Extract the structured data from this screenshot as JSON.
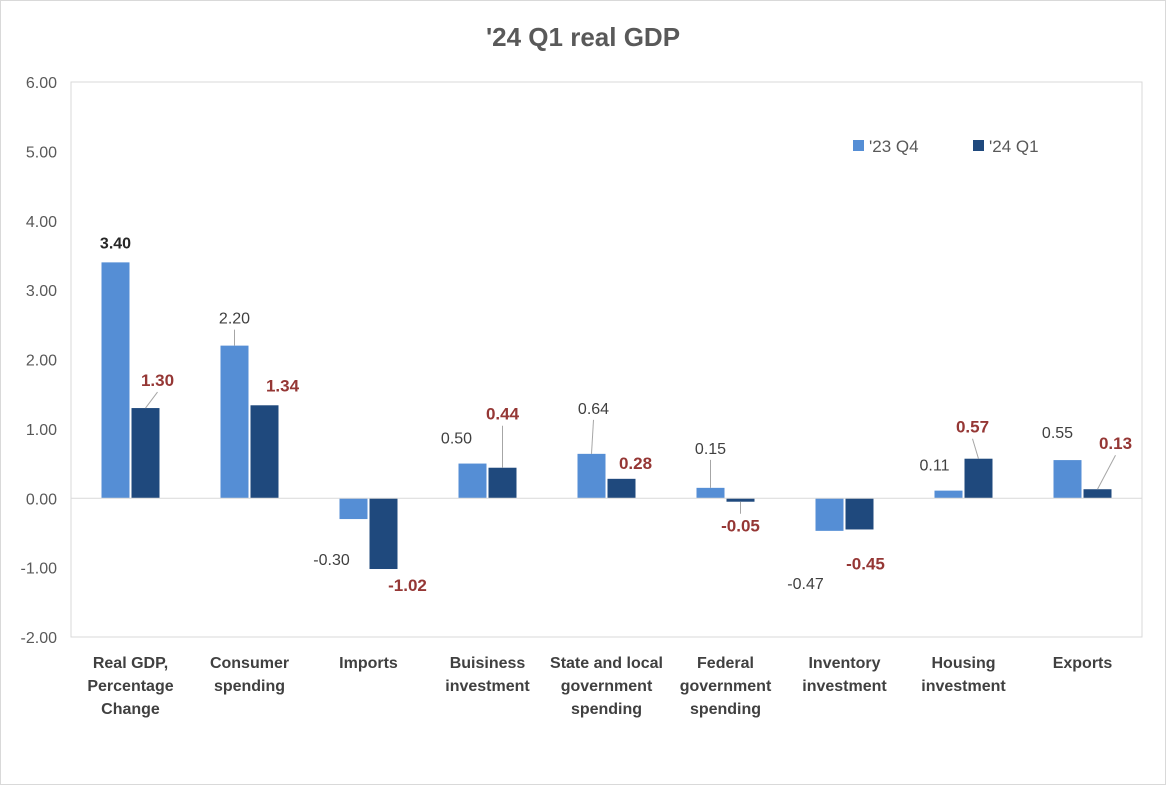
{
  "chart_data": {
    "type": "bar",
    "title": "'24 Q1 real GDP",
    "ylim": [
      -2,
      6
    ],
    "yticks": [
      "6.00",
      "5.00",
      "4.00",
      "3.00",
      "2.00",
      "1.00",
      "0.00",
      "-1.00",
      "-2.00"
    ],
    "grid": false,
    "legend_position": "top-right",
    "categories": [
      "Real GDP, Percentage Change",
      "Consumer spending",
      "Imports",
      "Buisiness investment",
      "State and local government spending",
      "Federal government spending",
      "Inventory investment",
      "Housing investment",
      "Exports"
    ],
    "category_lines": [
      [
        "Real GDP,",
        "Percentage",
        "Change"
      ],
      [
        "Consumer",
        "spending"
      ],
      [
        "Imports"
      ],
      [
        "Buisiness",
        "investment"
      ],
      [
        "State and local",
        "government",
        "spending"
      ],
      [
        "Federal",
        "government",
        "spending"
      ],
      [
        "Inventory",
        "investment"
      ],
      [
        "Housing",
        "investment"
      ],
      [
        "Exports"
      ]
    ],
    "series": [
      {
        "name": "'23 Q4",
        "color": "#558ed5",
        "values": [
          3.4,
          2.2,
          -0.3,
          0.5,
          0.64,
          0.15,
          -0.47,
          0.11,
          0.55
        ],
        "labels": [
          "3.40",
          "2.20",
          "-0.30",
          "0.50",
          "0.64",
          "0.15",
          "-0.47",
          "0.11",
          "0.55"
        ]
      },
      {
        "name": "'24 Q1",
        "color": "#1f497d",
        "values": [
          1.3,
          1.34,
          -1.02,
          0.44,
          0.28,
          -0.05,
          -0.45,
          0.57,
          0.13
        ],
        "labels": [
          "1.30",
          "1.34",
          "-1.02",
          "0.44",
          "0.28",
          "-0.05",
          "-0.45",
          "0.57",
          "0.13"
        ]
      }
    ]
  }
}
